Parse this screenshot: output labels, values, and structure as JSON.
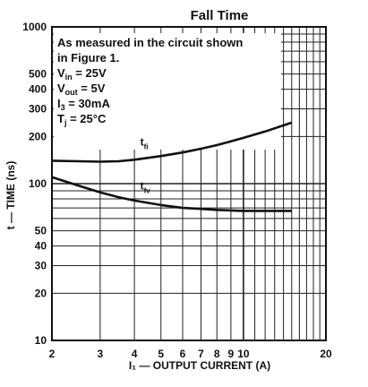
{
  "chart_data": {
    "type": "line",
    "title": "Fall Time",
    "xlabel": "I₁ — OUTPUT CURRENT (A)",
    "ylabel": "t — TIME (ns)",
    "xscale": "log",
    "yscale": "log",
    "xlim": [
      2,
      20
    ],
    "ylim": [
      10,
      1000
    ],
    "x_ticks": [
      {
        "value": 2,
        "label": "2"
      },
      {
        "value": 3,
        "label": "3"
      },
      {
        "value": 4,
        "label": "4"
      },
      {
        "value": 5,
        "label": "5"
      },
      {
        "value": 6,
        "label": "6"
      },
      {
        "value": 7,
        "label": "7"
      },
      {
        "value": 8,
        "label": "8"
      },
      {
        "value": 9,
        "label": "9"
      },
      {
        "value": 10,
        "label": "10"
      },
      {
        "value": 20,
        "label": "20"
      }
    ],
    "y_ticks": [
      {
        "value": 10,
        "label": "10"
      },
      {
        "value": 20,
        "label": "20"
      },
      {
        "value": 30,
        "label": "30"
      },
      {
        "value": 40,
        "label": "40"
      },
      {
        "value": 50,
        "label": "50"
      },
      {
        "value": 100,
        "label": "100"
      },
      {
        "value": 200,
        "label": "200"
      },
      {
        "value": 300,
        "label": "300"
      },
      {
        "value": 400,
        "label": "400"
      },
      {
        "value": 500,
        "label": "500"
      },
      {
        "value": 1000,
        "label": "1000"
      }
    ],
    "grid": true,
    "annotation": {
      "line1": "As measured in the circuit shown",
      "line2": "in Figure 1.",
      "vin": {
        "main": "V",
        "sub": "in",
        "value": " = 25V"
      },
      "vout": {
        "main": "V",
        "sub": "out",
        "value": " = 5V"
      },
      "i3": {
        "main": "I",
        "sub": "3",
        "value": " = 30mA"
      },
      "tj": {
        "main": "T",
        "sub": "j",
        "value": " = 25°C"
      }
    },
    "series": [
      {
        "name": "tfi",
        "label_main": "t",
        "label_sub": "fi",
        "x": [
          2,
          2.5,
          3,
          3.5,
          4,
          5,
          6,
          7,
          8,
          9,
          10,
          12,
          15
        ],
        "y": [
          140,
          139,
          138,
          139,
          142,
          150,
          158,
          167,
          176,
          186,
          196,
          215,
          245
        ]
      },
      {
        "name": "tfv",
        "label_main": "t",
        "label_sub": "fv",
        "x": [
          2,
          2.5,
          3,
          3.5,
          4,
          5,
          6,
          7,
          8,
          9,
          10,
          12,
          15
        ],
        "y": [
          110,
          97,
          88,
          82,
          78,
          73,
          70,
          69,
          68,
          67.5,
          67,
          67,
          67
        ]
      }
    ]
  }
}
